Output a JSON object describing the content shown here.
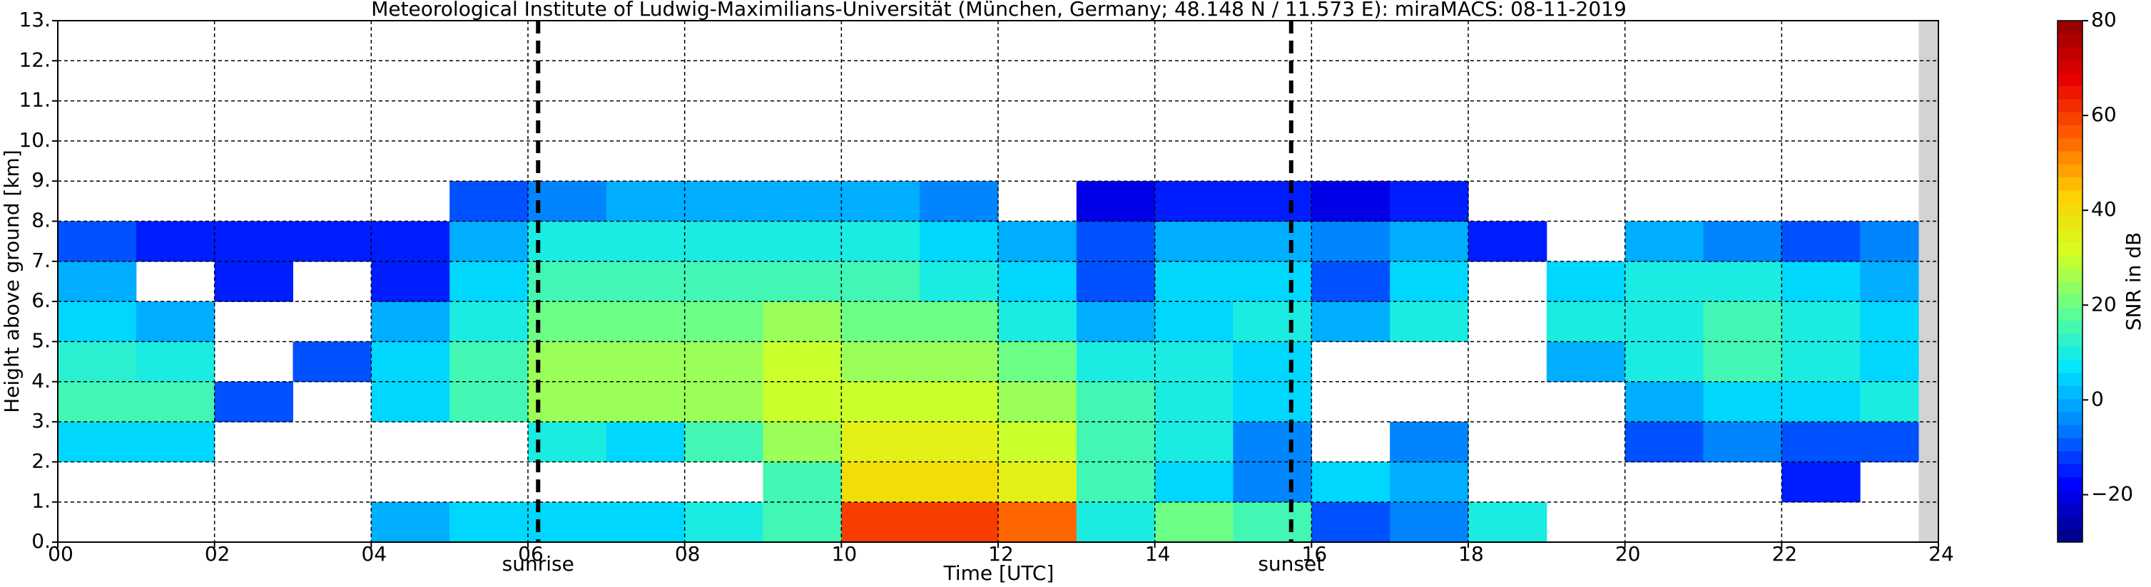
{
  "chart_data": {
    "type": "heatmap",
    "title": "Meteorological Institute of Ludwig-Maximilians-Universität (München, Germany; 48.148 N / 11.573 E):    miraMACS: 08-11-2019",
    "xlabel": "Time [UTC]",
    "ylabel": "Height above ground [km]",
    "colorbar_label": "SNR in dB",
    "xlim": [
      0,
      24
    ],
    "xticks": [
      {
        "value": 0,
        "label": "00"
      },
      {
        "value": 2,
        "label": "02"
      },
      {
        "value": 4,
        "label": "04"
      },
      {
        "value": 6,
        "label": "06"
      },
      {
        "value": 8,
        "label": "08"
      },
      {
        "value": 10,
        "label": "10"
      },
      {
        "value": 12,
        "label": "12"
      },
      {
        "value": 14,
        "label": "14"
      },
      {
        "value": 16,
        "label": "16"
      },
      {
        "value": 18,
        "label": "18"
      },
      {
        "value": 20,
        "label": "20"
      },
      {
        "value": 22,
        "label": "22"
      },
      {
        "value": 24,
        "label": "24"
      }
    ],
    "ylim": [
      0,
      13
    ],
    "yticks": [
      {
        "value": 0,
        "label": "0."
      },
      {
        "value": 1,
        "label": "1."
      },
      {
        "value": 2,
        "label": "2."
      },
      {
        "value": 3,
        "label": "3."
      },
      {
        "value": 4,
        "label": "4."
      },
      {
        "value": 5,
        "label": "5."
      },
      {
        "value": 6,
        "label": "6."
      },
      {
        "value": 7,
        "label": "7."
      },
      {
        "value": 8,
        "label": "8."
      },
      {
        "value": 9,
        "label": "9."
      },
      {
        "value": 10,
        "label": "10."
      },
      {
        "value": 11,
        "label": "11."
      },
      {
        "value": 12,
        "label": "12."
      },
      {
        "value": 13,
        "label": "13."
      }
    ],
    "grid": true,
    "annotations": [
      {
        "label": "sunrise",
        "x": 6.13
      },
      {
        "label": "sunset",
        "x": 15.74
      }
    ],
    "no_data": [
      23.75,
      24
    ],
    "zlim": [
      -30,
      80
    ],
    "zticks": [
      {
        "value": -20,
        "label": "−20"
      },
      0,
      20,
      40,
      60,
      80
    ],
    "colormap": [
      "#00007f",
      "#0000ff",
      "#0080ff",
      "#00e5ff",
      "#60ff90",
      "#d4ff20",
      "#ffd000",
      "#ff6000",
      "#e80000",
      "#900000"
    ],
    "x": [
      0,
      1,
      2,
      3,
      4,
      5,
      6,
      7,
      8,
      9,
      10,
      11,
      12,
      13,
      14,
      15,
      16,
      17,
      18,
      19,
      20,
      21,
      22,
      23
    ],
    "y": [
      0,
      1,
      2,
      3,
      4,
      5,
      6,
      7,
      8
    ],
    "z": [
      [
        null,
        null,
        null,
        null,
        0,
        5,
        5,
        5,
        10,
        15,
        60,
        60,
        55,
        10,
        20,
        15,
        -10,
        -5,
        10,
        null,
        null,
        null,
        null,
        null
      ],
      [
        null,
        null,
        null,
        null,
        null,
        null,
        null,
        null,
        null,
        15,
        40,
        40,
        35,
        15,
        5,
        -5,
        5,
        0,
        null,
        null,
        null,
        null,
        -15,
        null
      ],
      [
        5,
        5,
        null,
        null,
        null,
        null,
        10,
        5,
        15,
        25,
        35,
        35,
        30,
        15,
        10,
        -5,
        null,
        -5,
        null,
        null,
        -10,
        -5,
        -10,
        -10
      ],
      [
        15,
        15,
        -10,
        null,
        5,
        15,
        25,
        25,
        25,
        30,
        30,
        30,
        25,
        15,
        10,
        5,
        null,
        null,
        null,
        null,
        0,
        5,
        5,
        10
      ],
      [
        12,
        10,
        null,
        -10,
        5,
        15,
        25,
        25,
        25,
        30,
        25,
        25,
        20,
        10,
        10,
        5,
        null,
        null,
        null,
        0,
        10,
        15,
        10,
        5
      ],
      [
        5,
        0,
        null,
        null,
        0,
        10,
        20,
        20,
        20,
        25,
        20,
        20,
        10,
        0,
        5,
        10,
        0,
        10,
        null,
        10,
        10,
        15,
        10,
        5
      ],
      [
        0,
        null,
        -15,
        null,
        -15,
        5,
        15,
        15,
        15,
        15,
        15,
        10,
        5,
        -10,
        5,
        5,
        -10,
        5,
        null,
        5,
        10,
        10,
        5,
        0
      ],
      [
        -10,
        -15,
        -15,
        -15,
        -15,
        0,
        10,
        10,
        10,
        10,
        10,
        5,
        0,
        -10,
        0,
        0,
        -5,
        0,
        -15,
        null,
        0,
        -5,
        -10,
        -5
      ],
      [
        null,
        null,
        null,
        null,
        null,
        -10,
        -5,
        0,
        0,
        0,
        0,
        -5,
        null,
        -20,
        -15,
        -15,
        -20,
        -15,
        null,
        null,
        null,
        null,
        null,
        null
      ]
    ]
  }
}
